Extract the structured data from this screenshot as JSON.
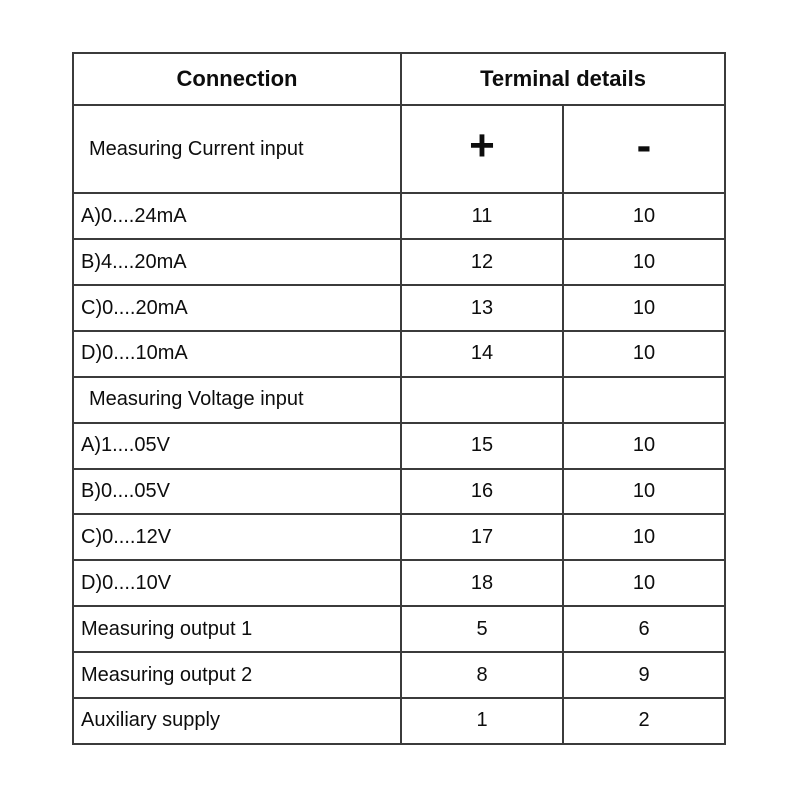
{
  "colors": {
    "border": "#3b3b3b",
    "text": "#0d0d0d",
    "background": "#ffffff"
  },
  "table": {
    "header": {
      "connection": "Connection",
      "terminal_details": "Terminal details"
    },
    "rows": [
      {
        "label": "Measuring Current input",
        "plus": "+",
        "minus": "-",
        "kind": "section-symbols"
      },
      {
        "label": "A)0....24mA",
        "plus": "11",
        "minus": "10",
        "kind": "data"
      },
      {
        "label": "B)4....20mA",
        "plus": "12",
        "minus": "10",
        "kind": "data"
      },
      {
        "label": "C)0....20mA",
        "plus": "13",
        "minus": "10",
        "kind": "data"
      },
      {
        "label": "D)0....10mA",
        "plus": "14",
        "minus": "10",
        "kind": "data"
      },
      {
        "label": "Measuring Voltage input",
        "plus": "",
        "minus": "",
        "kind": "section"
      },
      {
        "label": "A)1....05V",
        "plus": "15",
        "minus": "10",
        "kind": "data"
      },
      {
        "label": "B)0....05V",
        "plus": "16",
        "minus": "10",
        "kind": "data"
      },
      {
        "label": "C)0....12V",
        "plus": "17",
        "minus": "10",
        "kind": "data"
      },
      {
        "label": "D)0....10V",
        "plus": "18",
        "minus": "10",
        "kind": "data"
      },
      {
        "label": "Measuring output 1",
        "plus": "5",
        "minus": "6",
        "kind": "data"
      },
      {
        "label": "Measuring output 2",
        "plus": "8",
        "minus": "9",
        "kind": "data"
      },
      {
        "label": "Auxiliary supply",
        "plus": "1",
        "minus": "2",
        "kind": "data"
      }
    ]
  }
}
